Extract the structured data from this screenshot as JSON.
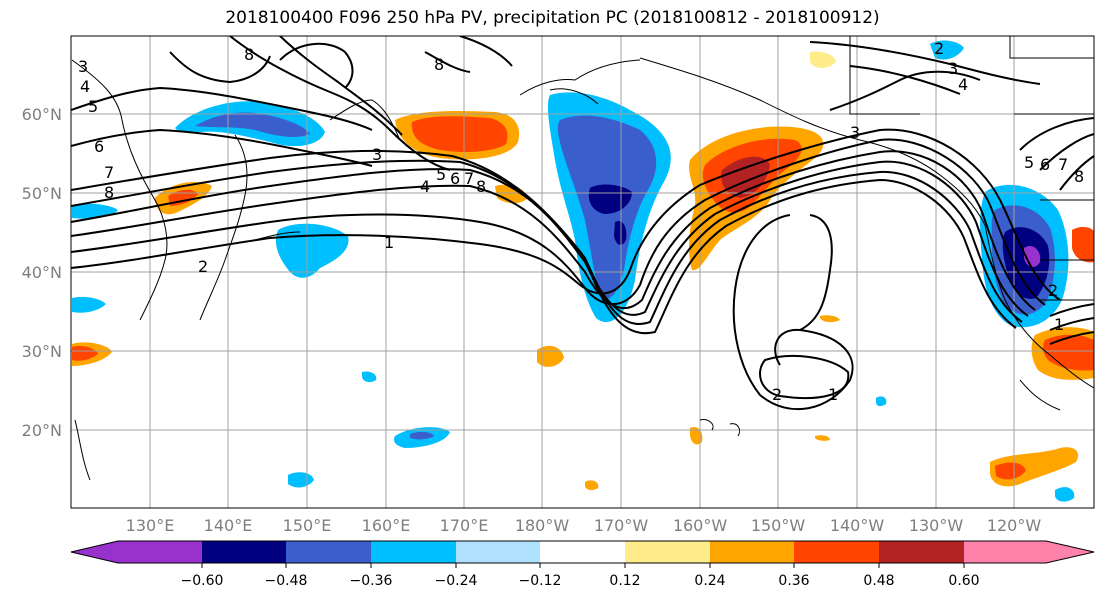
{
  "title": "2018100400 F096 250 hPa PV, precipitation PC (2018100812 - 2018100912)",
  "lat_labels": [
    "60°N",
    "50°N",
    "40°N",
    "30°N",
    "20°N"
  ],
  "lon_labels": [
    "130°E",
    "140°E",
    "150°E",
    "160°E",
    "170°E",
    "180°W",
    "170°W",
    "160°W",
    "150°W",
    "140°W",
    "130°W",
    "120°W"
  ],
  "colorbar": {
    "colors": [
      "#9932cc",
      "#000080",
      "#3a5fcd",
      "#00bfff",
      "#b0e2ff",
      "#ffffff",
      "#ffec8b",
      "#ffa500",
      "#ff4500",
      "#b22222",
      "#ff82ab"
    ],
    "tick_labels": [
      "−0.60",
      "−0.48",
      "−0.36",
      "−0.24",
      "−0.12",
      "0.12",
      "0.24",
      "0.36",
      "0.48",
      "0.60"
    ]
  },
  "contour_labels": [
    "1",
    "2",
    "3",
    "4",
    "5",
    "6",
    "7",
    "8",
    "1",
    "2",
    "3",
    "3",
    "4",
    "5",
    "6",
    "7",
    "8",
    "1",
    "2",
    "2",
    "3",
    "4",
    "5",
    "6",
    "7",
    "8",
    "8",
    "8"
  ]
}
